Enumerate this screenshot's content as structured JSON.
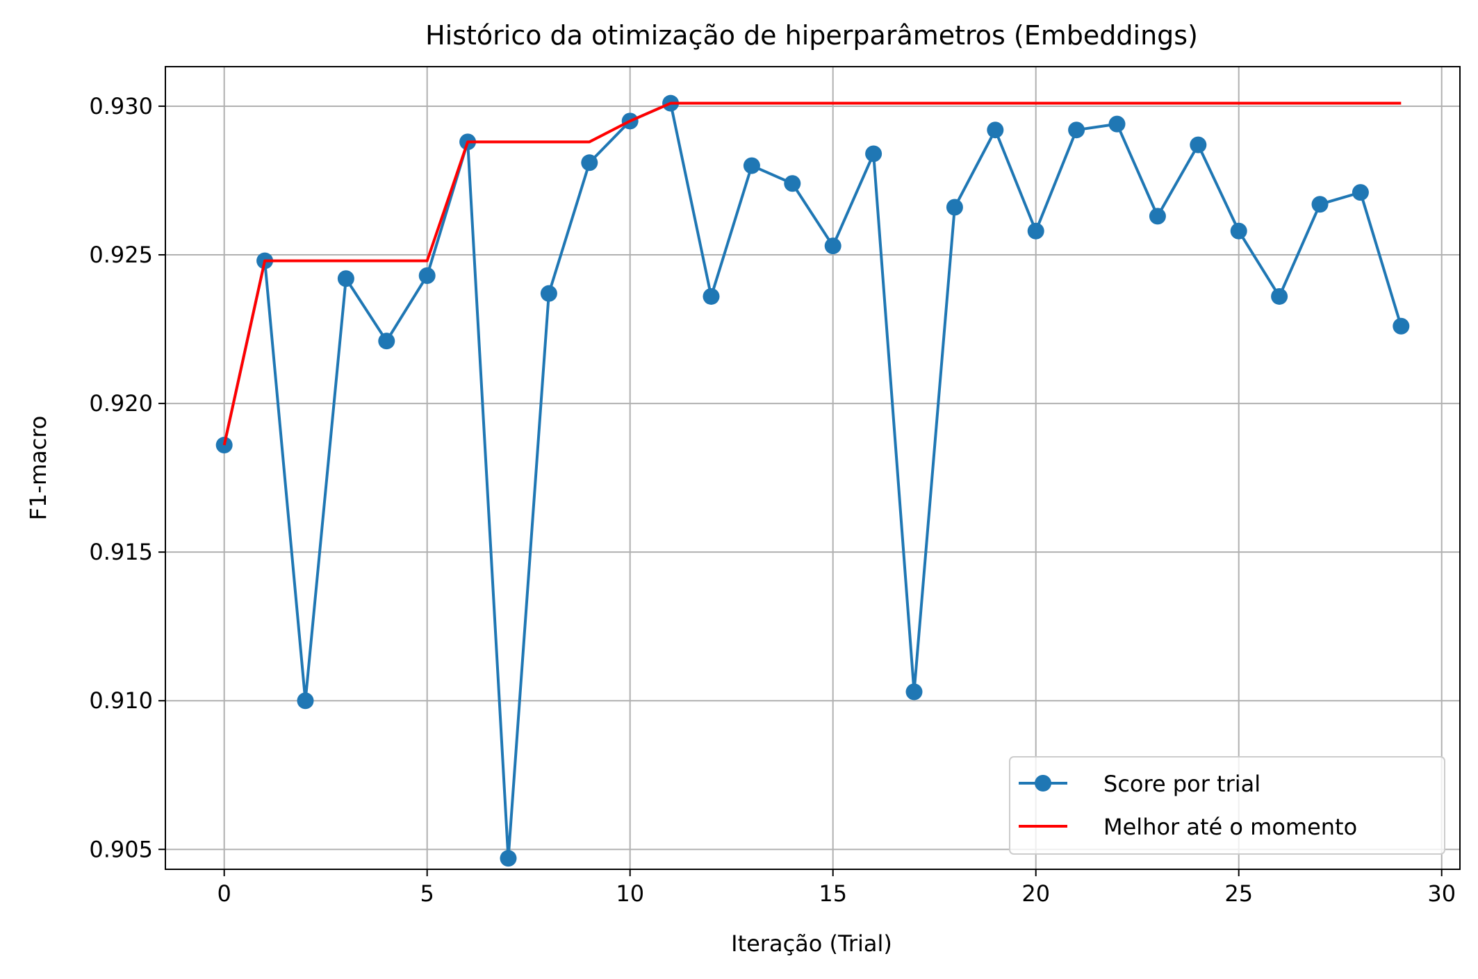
{
  "chart_data": {
    "type": "line",
    "title": "Histórico da otimização de hiperparâmetros (Embeddings)",
    "xlabel": "Iteração (Trial)",
    "ylabel": "F1-macro",
    "xlim": [
      -1.45,
      30.45
    ],
    "ylim": [
      0.90433,
      0.93133
    ],
    "x_ticks": [
      0,
      5,
      10,
      15,
      20,
      25,
      30
    ],
    "x_tick_labels": [
      "0",
      "5",
      "10",
      "15",
      "20",
      "25",
      "30"
    ],
    "y_ticks": [
      0.905,
      0.91,
      0.915,
      0.92,
      0.925,
      0.93
    ],
    "y_tick_labels": [
      "0.905",
      "0.910",
      "0.915",
      "0.920",
      "0.925",
      "0.930"
    ],
    "grid": true,
    "legend_position": "lower-right",
    "x": [
      0,
      1,
      2,
      3,
      4,
      5,
      6,
      7,
      8,
      9,
      10,
      11,
      12,
      13,
      14,
      15,
      16,
      17,
      18,
      19,
      20,
      21,
      22,
      23,
      24,
      25,
      26,
      27,
      28,
      29
    ],
    "series": [
      {
        "name": "Score por trial",
        "color": "#1f77b4",
        "marker": "circle",
        "values": [
          0.9186,
          0.9248,
          0.91,
          0.9242,
          0.9221,
          0.9243,
          0.9288,
          0.9047,
          0.9237,
          0.9281,
          0.9295,
          0.9301,
          0.9236,
          0.928,
          0.9274,
          0.9253,
          0.9284,
          0.9103,
          0.9266,
          0.9292,
          0.9258,
          0.9292,
          0.9294,
          0.9263,
          0.9287,
          0.9258,
          0.9236,
          0.9267,
          0.9271,
          0.9226
        ]
      },
      {
        "name": "Melhor até o momento",
        "color": "#ff0000",
        "marker": "none",
        "values": [
          0.9186,
          0.9248,
          0.9248,
          0.9248,
          0.9248,
          0.9248,
          0.9288,
          0.9288,
          0.9288,
          0.9288,
          0.9295,
          0.9301,
          0.9301,
          0.9301,
          0.9301,
          0.9301,
          0.9301,
          0.9301,
          0.9301,
          0.9301,
          0.9301,
          0.9301,
          0.9301,
          0.9301,
          0.9301,
          0.9301,
          0.9301,
          0.9301,
          0.9301,
          0.9301
        ]
      }
    ]
  }
}
